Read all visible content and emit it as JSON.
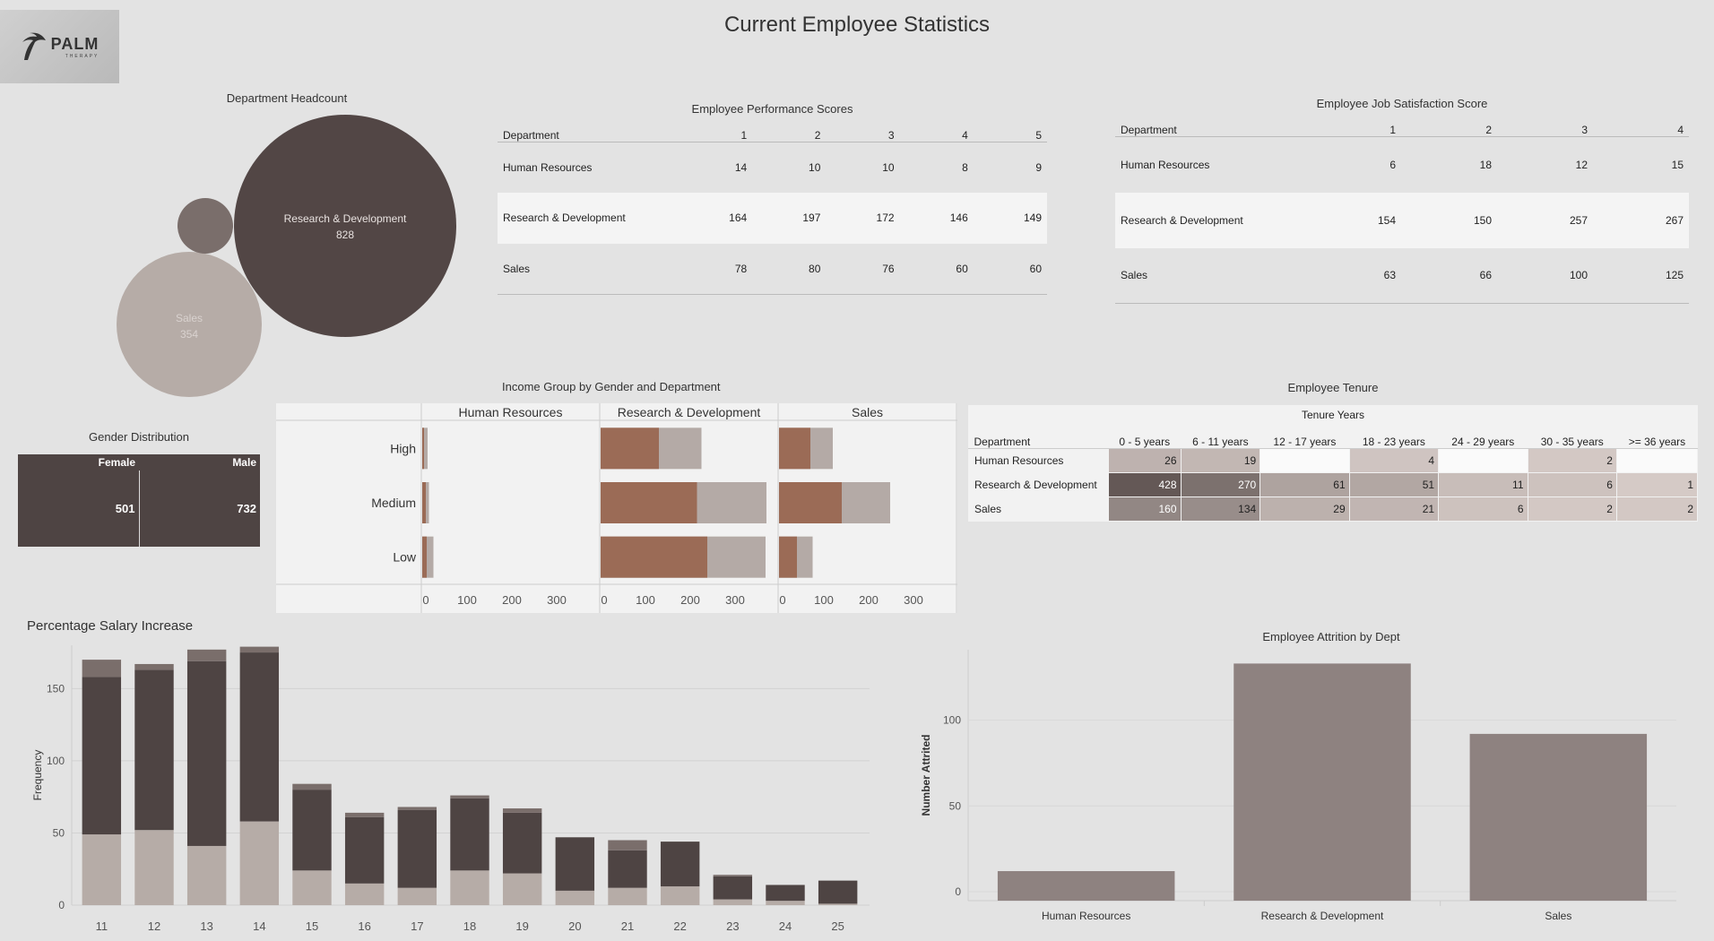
{
  "page": {
    "title": "Current Employee Statistics"
  },
  "logo": {
    "text": "PALM",
    "subtext": "THERAPY"
  },
  "headcount": {
    "title": "Department Headcount",
    "bubbles": [
      {
        "label": "Research & Development",
        "value": "828",
        "color": "#524645"
      },
      {
        "label": "Sales",
        "value": "354",
        "color": "#b6aca7"
      },
      {
        "label": "",
        "value": "",
        "color": "#7a6e6b"
      }
    ]
  },
  "performance": {
    "title": "Employee Performance Scores",
    "columns": [
      "Department",
      "1",
      "2",
      "3",
      "4",
      "5"
    ],
    "rows": [
      [
        "Human Resources",
        "14",
        "10",
        "10",
        "8",
        "9"
      ],
      [
        "Research & Development",
        "164",
        "197",
        "172",
        "146",
        "149"
      ],
      [
        "Sales",
        "78",
        "80",
        "76",
        "60",
        "60"
      ]
    ]
  },
  "satisfaction": {
    "title": "Employee Job Satisfaction Score",
    "columns": [
      "Department",
      "1",
      "2",
      "3",
      "4"
    ],
    "rows": [
      [
        "Human Resources",
        "6",
        "18",
        "12",
        "15"
      ],
      [
        "Research & Development",
        "154",
        "150",
        "257",
        "267"
      ],
      [
        "Sales",
        "63",
        "66",
        "100",
        "125"
      ]
    ]
  },
  "gender": {
    "title": "Gender Distribution",
    "female_label": "Female",
    "male_label": "Male",
    "female_value": "501",
    "male_value": "732"
  },
  "tenure": {
    "title": "Employee Tenure",
    "group_label": "Tenure Years",
    "columns": [
      "Department",
      "0 - 5 years",
      "6 - 11 years",
      "12 - 17 years",
      "18 - 23 years",
      "24 - 29 years",
      "30 - 35 years",
      ">= 36 years"
    ],
    "rows": [
      [
        "Human Resources",
        "26",
        "19",
        "",
        "4",
        "",
        "2",
        ""
      ],
      [
        "Research & Development",
        "428",
        "270",
        "61",
        "51",
        "11",
        "6",
        "1"
      ],
      [
        "Sales",
        "160",
        "134",
        "29",
        "21",
        "6",
        "2",
        "2"
      ]
    ]
  },
  "chart_data": [
    {
      "id": "income",
      "type": "bar",
      "orientation": "horizontal",
      "title": "Income Group by Gender and Department",
      "panels": [
        "Human Resources",
        "Research & Development",
        "Sales"
      ],
      "categories": [
        "High",
        "Medium",
        "Low"
      ],
      "x_ticks": [
        "0",
        "100",
        "200",
        "300"
      ],
      "xlim": [
        0,
        390
      ],
      "colors": {
        "dark": "#9b6b56",
        "light": "#b4aaa6"
      },
      "series": [
        {
          "values": [
            [
              4,
              8,
              10
            ],
            [
              130,
              215,
              238
            ],
            [
              70,
              140,
              40
            ]
          ]
        },
        {
          "values": [
            [
              12,
              15,
              25
            ],
            [
              225,
              370,
              368
            ],
            [
              120,
              248,
              75
            ]
          ]
        }
      ]
    },
    {
      "id": "salary",
      "type": "bar",
      "stacked": true,
      "title": "Percentage Salary Increase",
      "ylabel": "Frequency",
      "categories": [
        "11",
        "12",
        "13",
        "14",
        "15",
        "16",
        "17",
        "18",
        "19",
        "20",
        "21",
        "22",
        "23",
        "24",
        "25"
      ],
      "y_ticks": [
        "0",
        "50",
        "100",
        "150"
      ],
      "ylim": [
        0,
        180
      ],
      "colors": [
        "#b6aca7",
        "#4e4443",
        "#7a6e6b"
      ],
      "series": [
        {
          "values": [
            49,
            52,
            41,
            58,
            24,
            15,
            12,
            24,
            22,
            10,
            12,
            13,
            4,
            3,
            1
          ]
        },
        {
          "values": [
            109,
            111,
            128,
            117,
            56,
            46,
            54,
            50,
            42,
            37,
            26,
            31,
            16,
            11,
            16
          ]
        },
        {
          "values": [
            12,
            4,
            8,
            4,
            4,
            3,
            2,
            2,
            3,
            0,
            7,
            0,
            1,
            0,
            0
          ]
        }
      ]
    },
    {
      "id": "attrition",
      "type": "bar",
      "title": "Employee Attrition by Dept",
      "ylabel": "Number Attrited",
      "categories": [
        "Human Resources",
        "Research & Development",
        "Sales"
      ],
      "values": [
        12,
        133,
        92
      ],
      "y_ticks": [
        "0",
        "50",
        "100"
      ],
      "ylim": [
        0,
        140
      ],
      "color": "#8e8280"
    }
  ]
}
